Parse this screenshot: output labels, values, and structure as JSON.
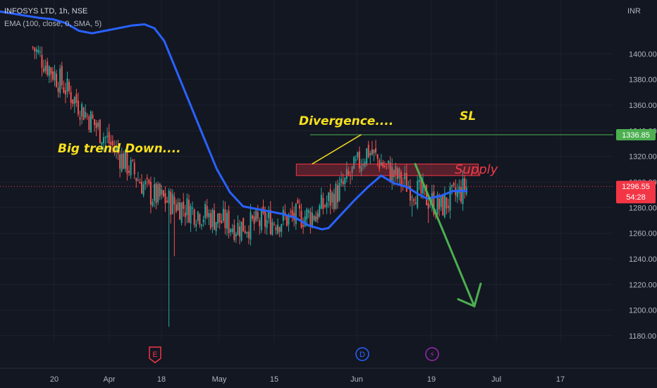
{
  "header": {
    "symbol_line": "INFOSYS LTD, 1h, NSE",
    "indicator_line": "EMA (100, close, 0, SMA, 5)"
  },
  "price_axis": {
    "currency": "INR",
    "ticks": [
      1400,
      1380,
      1360,
      1340,
      1320,
      1300,
      1280,
      1260,
      1240,
      1220,
      1200,
      1180
    ]
  },
  "badges": {
    "sl": {
      "label": "1336.85",
      "value": 1336.85,
      "color": "#4caf50"
    },
    "last": {
      "label": "1296.55",
      "value": 1296.55,
      "color": "#f23645"
    },
    "countdown": {
      "label": "54:28",
      "color": "#f23645"
    }
  },
  "events": {
    "earnings": {
      "glyph": "E",
      "color": "#f23645"
    },
    "dividend": {
      "glyph": "D",
      "color": "#2962ff"
    },
    "split": {
      "glyph": "⚡",
      "color": "#9c27b0"
    }
  },
  "annotations": {
    "trend": "Big trend Down....",
    "divergence": "Divergence....",
    "sl": "SL",
    "supply": "Supply"
  },
  "colors": {
    "background": "#131722",
    "grid": "#1e222d",
    "candle_up": "#26a69a",
    "candle_down": "#ef5350",
    "ema": "#2962ff",
    "sl_line": "#4caf50",
    "supply_zone": "#f23645",
    "arrow": "#4caf50",
    "annotation_text": "#f7e01e"
  },
  "chart_data": {
    "type": "candlestick",
    "title": "INFOSYS LTD, 1h, NSE",
    "x_ticks": [
      "20",
      "Apr",
      "18",
      "May",
      "15",
      "Jun",
      "19",
      "Jul",
      "17"
    ],
    "ylim": [
      1175,
      1442
    ],
    "levels": {
      "sl": 1336.85,
      "last_price": 1296.55
    },
    "supply_zone": [
      1305,
      1314
    ],
    "ema_path": [
      [
        0,
        1433
      ],
      [
        0.06,
        1428
      ],
      [
        0.08,
        1427
      ],
      [
        0.1,
        1424
      ],
      [
        0.12,
        1418
      ],
      [
        0.14,
        1416
      ],
      [
        0.16,
        1418
      ],
      [
        0.18,
        1420
      ],
      [
        0.2,
        1422
      ],
      [
        0.22,
        1423
      ],
      [
        0.235,
        1420
      ],
      [
        0.25,
        1410
      ],
      [
        0.27,
        1385
      ],
      [
        0.29,
        1360
      ],
      [
        0.31,
        1335
      ],
      [
        0.33,
        1310
      ],
      [
        0.35,
        1292
      ],
      [
        0.37,
        1281
      ],
      [
        0.39,
        1279
      ],
      [
        0.41,
        1277
      ],
      [
        0.43,
        1275
      ],
      [
        0.45,
        1272
      ],
      [
        0.47,
        1266
      ],
      [
        0.49,
        1263
      ],
      [
        0.5,
        1264
      ],
      [
        0.52,
        1275
      ],
      [
        0.54,
        1286
      ],
      [
        0.56,
        1296
      ],
      [
        0.58,
        1305
      ],
      [
        0.6,
        1299
      ],
      [
        0.62,
        1296
      ],
      [
        0.635,
        1291
      ],
      [
        0.65,
        1287
      ],
      [
        0.67,
        1289
      ],
      [
        0.69,
        1293
      ],
      [
        0.71,
        1293
      ]
    ],
    "trend_segments": [
      [
        0.05,
        0.23,
        1405,
        1290
      ],
      [
        0.23,
        0.36,
        1290,
        1265
      ],
      [
        0.36,
        0.48,
        1265,
        1275
      ],
      [
        0.48,
        0.52,
        1275,
        1295
      ],
      [
        0.52,
        0.56,
        1295,
        1325
      ],
      [
        0.56,
        0.6,
        1325,
        1305
      ],
      [
        0.6,
        0.67,
        1305,
        1280
      ],
      [
        0.67,
        0.71,
        1280,
        1296
      ]
    ],
    "dips": [
      [
        0.2568,
        1187
      ],
      [
        0.265,
        1242
      ],
      [
        0.626,
        1273
      ],
      [
        0.653,
        1268
      ]
    ],
    "divergence_line": [
      [
        0.475,
        1314
      ],
      [
        0.55,
        1337
      ]
    ],
    "arrow": {
      "from": [
        0.632,
        1314
      ],
      "to": [
        0.722,
        1203
      ]
    }
  }
}
